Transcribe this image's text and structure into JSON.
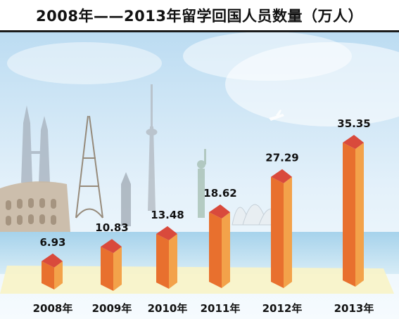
{
  "chart_data": {
    "type": "bar",
    "title": "2008年——2013年留学回国人员数量（万人）",
    "categories": [
      "2008年",
      "2009年",
      "2010年",
      "2011年",
      "2012年",
      "2013年"
    ],
    "values": [
      6.93,
      10.83,
      13.48,
      18.62,
      27.29,
      35.35
    ],
    "value_labels": [
      "6.93",
      "10.83",
      "13.48",
      "18.62",
      "27.29",
      "35.35"
    ],
    "ylim": [
      0,
      40
    ],
    "grid": false,
    "legend": "none"
  },
  "colors": {
    "bar_front": "#e8702e",
    "bar_side": "#f3a24a",
    "bar_top": "#d94a3c",
    "floor": "#f7f1c4",
    "sky_top": "#cfe6f6",
    "sky_bottom": "#e9f4fb"
  }
}
